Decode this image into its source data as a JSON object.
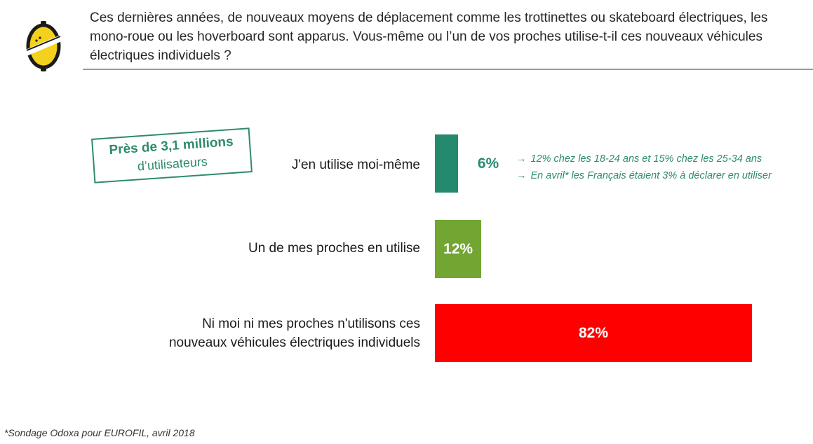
{
  "header": {
    "question": "Ces dernières années, de nouveaux moyens de déplacement comme les trottinettes ou skateboard électriques, les mono-roue ou les hoverboard sont apparus. Vous-même ou l’un de vos proches utilise-t-il ces nouveaux véhicules électriques individuels ?"
  },
  "logo": {
    "icon": "lemon-logo-icon",
    "colors": {
      "fill": "#f4d11c",
      "stroke": "#1b1b1b"
    }
  },
  "callout": {
    "line1": "Près de 3,1 millions",
    "line2": "d’utilisateurs",
    "color": "#2e8b6e"
  },
  "notes": [
    {
      "icon": "arrow-right-icon",
      "text": "12% chez les 18-24 ans et 15% chez les 25-34 ans"
    },
    {
      "icon": "arrow-right-icon",
      "text": "En avril* les Français étaient 3% à déclarer en utiliser"
    }
  ],
  "footnote": "*Sondage Odoxa pour EUROFIL, avril 2018",
  "chart_data": {
    "type": "bar",
    "orientation": "horizontal",
    "categories": [
      "J'en utilise moi-même",
      "Un de mes proches en utilise",
      "Ni moi ni mes proches n'utilisons ces nouveaux véhicules électriques individuels"
    ],
    "category_lines": [
      [
        "J'en utilise moi-même"
      ],
      [
        "Un de mes proches en utilise"
      ],
      [
        "Ni moi ni mes proches n'utilisons ces",
        "nouveaux véhicules électriques individuels"
      ]
    ],
    "values": [
      6,
      12,
      82
    ],
    "value_labels": [
      "6%",
      "12%",
      "82%"
    ],
    "unit": "%",
    "colors": [
      "#25896e",
      "#72a532",
      "#ff0000"
    ],
    "value_label_colors": [
      "#25896e",
      "#ffffff",
      "#ffffff"
    ],
    "label_position": [
      "outside",
      "inside",
      "inside"
    ],
    "xlim": [
      0,
      82
    ],
    "grid": false,
    "legend": "none"
  }
}
